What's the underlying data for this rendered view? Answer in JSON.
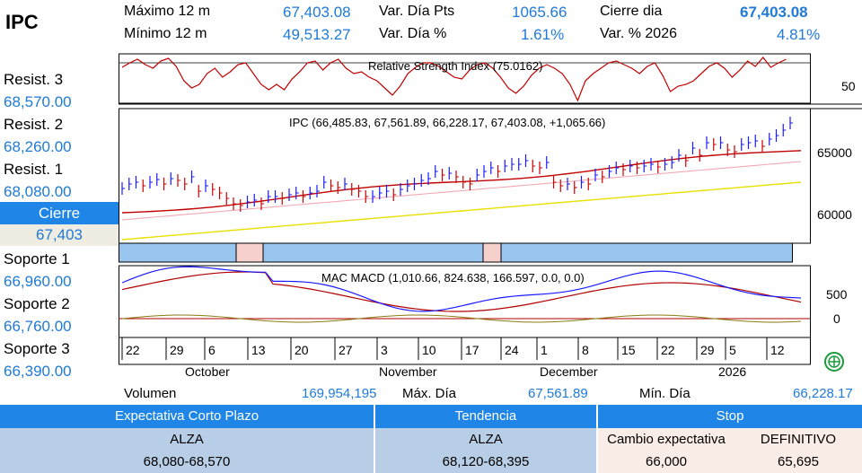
{
  "title": "IPC",
  "stats": {
    "max12_label": "Máximo 12 m",
    "max12_value": "67,403.08",
    "min12_label": "Mínimo 12 m",
    "min12_value": "49,513.27",
    "vardia_pts_label": "Var. Día Pts",
    "vardia_pts_value": "1065.66",
    "vardia_pct_label": "Var. Día %",
    "vardia_pct_value": "1.61%",
    "cierre_label": "Cierre dia",
    "cierre_value": "67,403.08",
    "var2026_label": "Var. % 2026",
    "var2026_value": "4.81%"
  },
  "levels": {
    "resist3_label": "Resist. 3",
    "resist3_value": "68,570.00",
    "resist2_label": "Resist. 2",
    "resist2_value": "68,260.00",
    "resist1_label": "Resist. 1",
    "resist1_value": "68,080.00",
    "cierre_label": "Cierre",
    "cierre_value": "67,403",
    "soporte1_label": "Soporte 1",
    "soporte1_value": "66,960.00",
    "soporte2_label": "Soporte 2",
    "soporte2_value": "66,760.00",
    "soporte3_label": "Soporte 3",
    "soporte3_value": "66,390.00"
  },
  "chart": {
    "rsi_title": "Relative Strength Index (75.0162)",
    "rsi_tick": "50",
    "price_title": "IPC (66,485.83, 67,561.89, 66,228.17, 67,403.08, +1,065.66)",
    "price_tick_high": "65000",
    "price_tick_low": "60000",
    "macd_title": "MAC MACD (1,010.66, 824.638, 166.597, 0.0, 0.0)",
    "macd_tick_high": "500",
    "macd_tick_zero": "0",
    "day_ticks": [
      "22",
      "29",
      "6",
      "13",
      "20",
      "27",
      "3",
      "10",
      "17",
      "24",
      "1",
      "8",
      "15",
      "22",
      "29",
      "5",
      "12"
    ],
    "months": [
      "October",
      "November",
      "December",
      "2026"
    ],
    "colors": {
      "price_up": "#1a1aff",
      "price_down": "#cc0000",
      "ma_short": "#c00000",
      "ma_mid": "#f3a7b3",
      "ma_long": "#e8e000",
      "rsi": "#c00000",
      "macd": "#1a1aff",
      "signal": "#b00000",
      "hist": "#8a7a10"
    },
    "icon": "globe-icon"
  },
  "volume": {
    "label": "Volumen",
    "value": "169,954,195",
    "maxdia_label": "Máx. Día",
    "maxdia_value": "67,561.89",
    "mindia_label": "Mín. Día",
    "mindia_value": "66,228.17"
  },
  "bottom": {
    "expectativa_header": "Expectativa Corto Plazo",
    "tendencia_header": "Tendencia",
    "stop_header": "Stop",
    "expectativa_value": "ALZA",
    "expectativa_range": "68,080-68,570",
    "tendencia_value": "ALZA",
    "tendencia_range": "68,120-68,395",
    "cambio_label": "Cambio expectativa",
    "definitivo_label": "DEFINITIVO",
    "cambio_value": "66,000",
    "definitivo_value": "65,695"
  }
}
